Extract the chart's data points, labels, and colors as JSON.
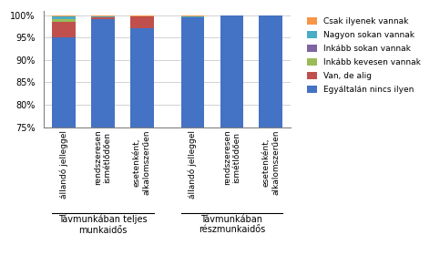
{
  "categories": [
    "állandó jelleggel",
    "rendszeresen\nismétlődően",
    "esetenként,\nalkalomszerűen",
    "állandó jelleggel",
    "rendszeresen\nismétlődően",
    "esetenként,\nalkalomszerűen"
  ],
  "group_labels": [
    "Távmunkában teljes\nmunkaidős",
    "Távmunkában\nrészmunkaidős"
  ],
  "series": {
    "Egyáltalán nincs ilyen": [
      95.0,
      99.0,
      97.0,
      99.5,
      100.0,
      100.0
    ],
    "Van, de alig": [
      3.5,
      0.5,
      2.8,
      0.0,
      0.0,
      0.0
    ],
    "Inkább kevesen vannak": [
      0.5,
      0.0,
      0.0,
      0.0,
      0.0,
      0.0
    ],
    "Inkább sokan vannak": [
      0.2,
      0.0,
      0.0,
      0.0,
      0.0,
      0.0
    ],
    "Nagyon sokan vannak": [
      0.5,
      0.3,
      0.0,
      0.3,
      0.0,
      0.0
    ],
    "Csak ilyenek vannak": [
      0.3,
      0.2,
      0.2,
      0.2,
      0.0,
      0.0
    ]
  },
  "colors": {
    "Egyáltalán nincs ilyen": "#4472C4",
    "Van, de alig": "#C0504D",
    "Inkább kevesen vannak": "#9BBB59",
    "Inkább sokan vannak": "#8064A2",
    "Nagyon sokan vannak": "#4BACC6",
    "Csak ilyenek vannak": "#F79646"
  },
  "ylim": [
    75,
    101
  ],
  "yticks": [
    75,
    80,
    85,
    90,
    95,
    100
  ],
  "yticklabels": [
    "75%",
    "80%",
    "85%",
    "90%",
    "95%",
    "100%"
  ],
  "background_color": "#FFFFFF",
  "grid_color": "#C0C0C0",
  "bar_width": 0.6,
  "x_positions": [
    0,
    1,
    2,
    3.3,
    4.3,
    5.3
  ]
}
